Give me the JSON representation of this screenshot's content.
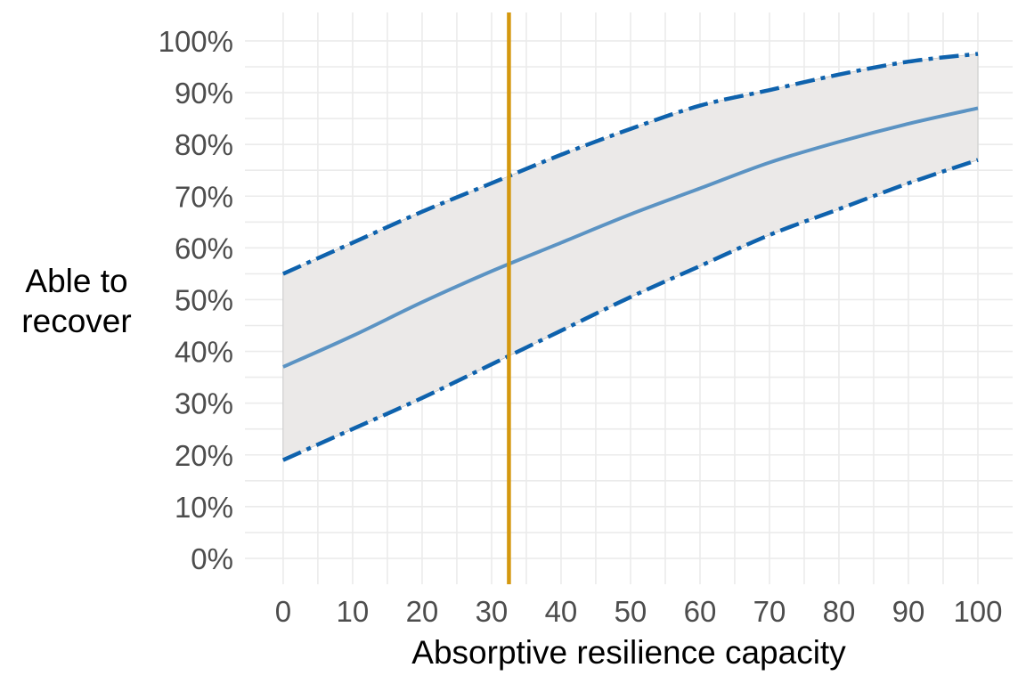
{
  "chart_data": {
    "type": "line",
    "title": "",
    "xlabel": "Absorptive resilience capacity",
    "ylabel_lines": [
      "Able to",
      "recover"
    ],
    "x_ticks": [
      0,
      10,
      20,
      30,
      40,
      50,
      60,
      70,
      80,
      90,
      100
    ],
    "x_tick_labels": [
      "0",
      "10",
      "20",
      "30",
      "40",
      "50",
      "60",
      "70",
      "80",
      "90",
      "100"
    ],
    "y_ticks": [
      0,
      10,
      20,
      30,
      40,
      50,
      60,
      70,
      80,
      90,
      100
    ],
    "y_tick_labels": [
      "0%",
      "10%",
      "20%",
      "30%",
      "40%",
      "50%",
      "60%",
      "70%",
      "80%",
      "90%",
      "100%"
    ],
    "xlim": [
      -5.5,
      105
    ],
    "ylim": [
      -5,
      105.5
    ],
    "grid": true,
    "x": [
      0,
      10,
      20,
      30,
      40,
      50,
      60,
      70,
      80,
      90,
      100
    ],
    "series": [
      {
        "role": "estimate",
        "values": [
          37,
          43,
          49.5,
          55.5,
          61,
          66.5,
          71.5,
          76.5,
          80.5,
          84,
          87
        ],
        "color": "#5b93c3",
        "style": "solid"
      },
      {
        "role": "upper",
        "values": [
          55,
          61,
          67,
          72.5,
          78,
          83,
          87.5,
          90.5,
          93.5,
          96,
          97.5
        ],
        "color": "#0e62ad",
        "style": "dashdot"
      },
      {
        "role": "lower",
        "values": [
          19,
          25,
          31,
          37.5,
          44,
          50.5,
          56.5,
          62.5,
          67.5,
          72.5,
          77
        ],
        "color": "#0e62ad",
        "style": "dashdot"
      }
    ],
    "ribbon_color": "#ebe9e8",
    "reference_line": {
      "x": 32.5,
      "color": "#d4980f"
    }
  }
}
